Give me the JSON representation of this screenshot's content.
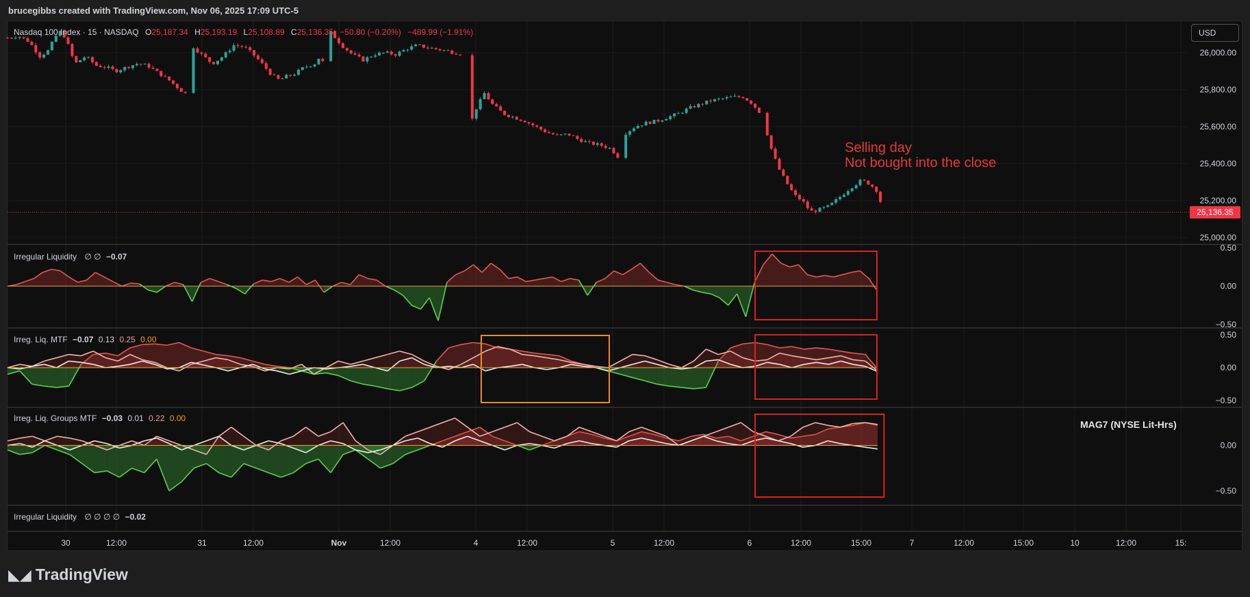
{
  "header": {
    "credit": "brucegibbs created with TradingView.com, Nov 06, 2025 17:09 UTC-5"
  },
  "symbol": {
    "name": "Nasdaq 100 Index · 15 · NASDAQ",
    "o_label": "O",
    "o": "25,187.34",
    "h_label": "H",
    "h": "25,193.19",
    "l_label": "L",
    "l": "25,108.89",
    "c_label": "C",
    "c": "25,136.35",
    "change": "−50.80 (−0.20%)",
    "change2": "−489.99 (−1.91%)"
  },
  "currency_button": "USD",
  "annotation": {
    "line1": "Selling day",
    "line2": "Not bought into the close"
  },
  "mag_label": "MAG7 (NYSE Lit-Hrs)",
  "brand": {
    "name": "TradingView",
    "logo_icon": "tradingview-logo-icon"
  },
  "colors": {
    "up": "#26a69a",
    "down": "#f23645",
    "box_red": "#e0201c",
    "box_orange": "#f08a24",
    "zero_line": "#f0a030"
  },
  "chart_data": [
    {
      "type": "candlestick",
      "name": "price",
      "y_ticks": [
        "26,000.00",
        "25,800.00",
        "25,600.00",
        "25,400.00",
        "25,200.00",
        "25,000.00"
      ],
      "ylim": [
        24970,
        26170
      ],
      "last_price_label": "25,136.35",
      "last_price": 25136.35,
      "close_path": [
        [
          0,
          26080
        ],
        [
          8,
          26090
        ],
        [
          16,
          26060
        ],
        [
          24,
          25980
        ],
        [
          30,
          26010
        ],
        [
          36,
          26090
        ],
        [
          40,
          26120
        ],
        [
          44,
          26060
        ],
        [
          50,
          25940
        ],
        [
          58,
          25980
        ],
        [
          66,
          25930
        ],
        [
          74,
          25920
        ],
        [
          80,
          25900
        ],
        [
          88,
          25920
        ],
        [
          96,
          25940
        ],
        [
          104,
          25930
        ],
        [
          112,
          25890
        ],
        [
          120,
          25850
        ],
        [
          128,
          25800
        ],
        [
          134,
          25770
        ],
        [
          138,
          26030
        ],
        [
          144,
          25990
        ],
        [
          152,
          25940
        ],
        [
          160,
          25980
        ],
        [
          168,
          26040
        ],
        [
          176,
          26030
        ],
        [
          184,
          25980
        ],
        [
          190,
          25930
        ],
        [
          196,
          25880
        ],
        [
          202,
          25850
        ],
        [
          206,
          25870
        ],
        [
          212,
          25880
        ],
        [
          220,
          25920
        ],
        [
          228,
          25940
        ],
        [
          232,
          25980
        ],
        [
          236,
          25920
        ],
        [
          240,
          26110
        ],
        [
          248,
          26040
        ],
        [
          256,
          25990
        ],
        [
          264,
          25960
        ],
        [
          272,
          25990
        ],
        [
          280,
          26000
        ],
        [
          288,
          25990
        ],
        [
          296,
          26020
        ],
        [
          304,
          26040
        ],
        [
          310,
          26030
        ],
        [
          318,
          26020
        ],
        [
          326,
          26010
        ],
        [
          332,
          26000
        ],
        [
          338,
          25990
        ],
        [
          344,
          25620
        ],
        [
          348,
          25700
        ],
        [
          354,
          25780
        ],
        [
          360,
          25720
        ],
        [
          368,
          25670
        ],
        [
          376,
          25650
        ],
        [
          384,
          25630
        ],
        [
          392,
          25600
        ],
        [
          400,
          25570
        ],
        [
          408,
          25550
        ],
        [
          416,
          25560
        ],
        [
          424,
          25530
        ],
        [
          432,
          25510
        ],
        [
          440,
          25500
        ],
        [
          448,
          25480
        ],
        [
          454,
          25430
        ],
        [
          458,
          25560
        ],
        [
          466,
          25600
        ],
        [
          474,
          25620
        ],
        [
          482,
          25630
        ],
        [
          490,
          25650
        ],
        [
          498,
          25670
        ],
        [
          506,
          25700
        ],
        [
          514,
          25720
        ],
        [
          522,
          25740
        ],
        [
          530,
          25750
        ],
        [
          538,
          25760
        ],
        [
          546,
          25760
        ],
        [
          552,
          25730
        ],
        [
          558,
          25680
        ],
        [
          562,
          25620
        ],
        [
          566,
          25500
        ],
        [
          572,
          25380
        ],
        [
          578,
          25300
        ],
        [
          584,
          25230
        ],
        [
          590,
          25200
        ],
        [
          596,
          25140
        ],
        [
          602,
          25150
        ],
        [
          610,
          25170
        ],
        [
          618,
          25220
        ],
        [
          626,
          25270
        ],
        [
          634,
          25310
        ],
        [
          640,
          25290
        ],
        [
          646,
          25250
        ],
        [
          650,
          25140
        ]
      ],
      "candle_step": 3
    },
    {
      "type": "area-line",
      "name": "Irregular Liquidity",
      "legend": "Irregular Liquidity  ∅  ∅  −0.07",
      "legend_name": "Irregular Liquidity",
      "legend_vals": "∅  ∅",
      "legend_last": "−0.07",
      "y_ticks": [
        "0.50",
        "0.00",
        "−0.50"
      ],
      "ylim": [
        -0.5,
        0.5
      ],
      "values": [
        0.0,
        0.02,
        0.06,
        0.1,
        0.18,
        0.22,
        0.2,
        0.12,
        0.05,
        0.08,
        0.18,
        0.12,
        0.06,
        0.0,
        0.04,
        0.03,
        -0.05,
        -0.08,
        0.0,
        0.05,
        0.02,
        -0.2,
        0.05,
        0.1,
        0.06,
        0.02,
        -0.03,
        -0.1,
        0.03,
        0.08,
        0.06,
        0.1,
        0.05,
        0.12,
        0.02,
        0.08,
        -0.08,
        0.0,
        0.05,
        0.02,
        0.15,
        0.1,
        0.08,
        0.0,
        -0.05,
        -0.12,
        -0.25,
        -0.3,
        -0.15,
        -0.45,
        0.05,
        0.15,
        0.2,
        0.28,
        0.18,
        0.3,
        0.22,
        0.1,
        0.12,
        0.06,
        0.08,
        0.1,
        0.12,
        0.06,
        0.1,
        0.08,
        -0.12,
        0.05,
        0.1,
        0.2,
        0.15,
        0.22,
        0.3,
        0.18,
        0.08,
        0.05,
        0.02,
        0.0,
        -0.05,
        -0.08,
        -0.1,
        -0.15,
        -0.25,
        -0.1,
        -0.4,
        0.05,
        0.28,
        0.42,
        0.3,
        0.25,
        0.28,
        0.15,
        0.12,
        0.14,
        0.12,
        0.15,
        0.18,
        0.2,
        0.1,
        -0.07
      ],
      "box": {
        "from": 0.577,
        "to": 0.663,
        "color": "red"
      }
    },
    {
      "type": "multi-line",
      "name": "Irreg. Liq. MTF",
      "legend_name": "Irreg. Liq. MTF",
      "legend_values": [
        "−0.07",
        "0.13",
        "0.25",
        "0.00"
      ],
      "y_ticks": [
        "0.50",
        "0.00",
        "−0.50"
      ],
      "ylim": [
        -0.55,
        0.55
      ],
      "series": [
        {
          "values": [
            -0.1,
            -0.05,
            -0.25,
            -0.28,
            -0.3,
            -0.28,
            0.05,
            0.2,
            0.22,
            0.18,
            0.3,
            0.35,
            0.36,
            0.34,
            0.38,
            0.3,
            0.25,
            0.2,
            0.18,
            0.15,
            0.1,
            0.05,
            0.02,
            0.0,
            -0.05,
            -0.1,
            -0.08,
            -0.12,
            -0.2,
            -0.25,
            -0.28,
            -0.32,
            -0.35,
            -0.3,
            -0.2,
            0.1,
            0.3,
            0.35,
            0.38,
            0.36,
            0.3,
            0.28,
            0.25,
            0.22,
            0.2,
            0.18,
            0.1,
            0.05,
            0.0,
            -0.05,
            -0.1,
            -0.15,
            -0.2,
            -0.25,
            -0.28,
            -0.3,
            -0.32,
            -0.3,
            0.1,
            0.3,
            0.36,
            0.38,
            0.35,
            0.3,
            0.32,
            0.28,
            0.3,
            0.28,
            0.25,
            0.22,
            0.2,
            -0.02
          ]
        },
        {
          "values": [
            0.0,
            0.05,
            0.02,
            0.1,
            0.15,
            0.2,
            0.18,
            0.25,
            0.15,
            0.1,
            0.2,
            0.12,
            0.08,
            0.0,
            -0.05,
            0.05,
            0.1,
            0.15,
            0.12,
            0.05,
            0.02,
            -0.05,
            0.0,
            -0.02,
            0.05,
            -0.1,
            0.0,
            0.1,
            0.05,
            0.1,
            0.15,
            0.2,
            0.25,
            0.2,
            0.1,
            0.02,
            -0.03,
            0.05,
            0.15,
            0.25,
            0.32,
            0.28,
            0.2,
            0.18,
            0.15,
            0.12,
            0.08,
            0.05,
            0.02,
            0.0,
            0.1,
            0.2,
            0.18,
            0.12,
            0.05,
            0.0,
            0.1,
            0.28,
            0.2,
            0.25,
            0.15,
            0.1,
            0.12,
            0.22,
            0.18,
            0.15,
            0.12,
            0.15,
            0.18,
            0.12,
            0.1,
            -0.05
          ]
        },
        {
          "values": [
            0.0,
            -0.02,
            0.02,
            0.05,
            0.0,
            0.1,
            0.08,
            0.05,
            0.0,
            0.02,
            0.05,
            0.1,
            0.05,
            -0.02,
            0.0,
            0.08,
            0.04,
            0.0,
            -0.05,
            0.0,
            0.05,
            -0.02,
            -0.05,
            -0.1,
            -0.05,
            0.0,
            -0.02,
            0.0,
            0.02,
            0.05,
            0.0,
            -0.05,
            0.1,
            0.15,
            0.05,
            0.0,
            0.02,
            0.0,
            0.05,
            -0.05,
            0.0,
            0.02,
            0.05,
            0.0,
            -0.03,
            0.0,
            0.05,
            0.02,
            0.0,
            -0.05,
            0.0,
            0.05,
            0.1,
            0.05,
            0.0,
            -0.02,
            0.0,
            0.1,
            0.12,
            0.05,
            0.0,
            0.02,
            0.08,
            0.05,
            0.0,
            0.05,
            0.08,
            0.05,
            0.1,
            0.05,
            0.02,
            -0.06
          ]
        }
      ],
      "boxes": [
        {
          "from": 0.37,
          "to": 0.47,
          "color": "orange"
        },
        {
          "from": 0.577,
          "to": 0.663,
          "color": "red"
        }
      ]
    },
    {
      "type": "multi-line",
      "name": "Irreg. Liq. Groups MTF",
      "legend_name": "Irreg. Liq. Groups MTF",
      "legend_values": [
        "−0.03",
        "0.01",
        "0.22",
        "0.00"
      ],
      "y_ticks": [
        "0.00",
        "−0.50"
      ],
      "ylim": [
        -0.62,
        0.38
      ],
      "series": [
        {
          "values": [
            -0.05,
            -0.1,
            -0.08,
            0.0,
            -0.05,
            -0.1,
            -0.2,
            -0.3,
            -0.28,
            -0.35,
            -0.25,
            -0.3,
            -0.15,
            -0.5,
            -0.4,
            -0.25,
            -0.2,
            -0.3,
            -0.35,
            -0.2,
            -0.25,
            -0.3,
            -0.35,
            -0.3,
            -0.2,
            -0.15,
            -0.3,
            -0.1,
            -0.05,
            -0.15,
            -0.25,
            -0.2,
            -0.1,
            -0.05,
            0.0,
            0.05,
            0.1,
            0.15,
            0.2,
            0.1,
            0.05,
            0.0,
            -0.05,
            0.0,
            0.05,
            0.1,
            0.15,
            0.12,
            0.08,
            0.05,
            0.1,
            0.15,
            0.12,
            0.08,
            0.05,
            0.1,
            0.12,
            0.08,
            0.1,
            0.05,
            0.1,
            0.15,
            0.12,
            0.08,
            0.1,
            0.12,
            0.18,
            0.2,
            0.22,
            0.25,
            0.22
          ]
        },
        {
          "values": [
            0.05,
            0.08,
            0.1,
            0.05,
            0.1,
            0.08,
            0.05,
            0.0,
            -0.05,
            0.0,
            0.05,
            0.0,
            0.1,
            0.05,
            0.0,
            -0.05,
            -0.1,
            0.1,
            0.2,
            0.1,
            0.0,
            -0.05,
            0.05,
            0.1,
            0.2,
            0.1,
            0.15,
            0.25,
            0.05,
            -0.05,
            -0.1,
            0.0,
            0.1,
            0.15,
            0.2,
            0.25,
            0.3,
            0.2,
            0.1,
            0.15,
            0.2,
            0.25,
            0.15,
            0.1,
            0.05,
            0.1,
            0.2,
            0.15,
            0.1,
            0.05,
            0.15,
            0.2,
            0.15,
            0.1,
            0.0,
            0.05,
            0.1,
            0.15,
            0.2,
            0.25,
            0.15,
            0.1,
            0.05,
            0.1,
            0.2,
            0.25,
            0.22,
            0.2,
            0.24,
            0.25,
            0.23
          ]
        },
        {
          "values": [
            0.0,
            0.02,
            -0.02,
            0.05,
            0.0,
            -0.05,
            0.0,
            0.05,
            0.02,
            -0.03,
            0.0,
            0.05,
            0.08,
            0.02,
            -0.05,
            0.0,
            0.05,
            0.1,
            0.0,
            -0.05,
            0.0,
            0.05,
            0.02,
            -0.03,
            -0.08,
            0.0,
            0.05,
            0.02,
            -0.05,
            -0.08,
            -0.05,
            0.0,
            0.05,
            0.08,
            0.02,
            -0.02,
            0.05,
            0.1,
            0.05,
            0.0,
            -0.05,
            0.0,
            0.02,
            0.0,
            -0.03,
            0.02,
            0.05,
            0.02,
            0.0,
            -0.02,
            0.05,
            0.08,
            0.05,
            0.02,
            0.0,
            0.05,
            0.1,
            0.05,
            0.02,
            0.0,
            0.05,
            0.08,
            0.05,
            0.02,
            -0.02,
            0.0,
            0.05,
            0.02,
            0.0,
            -0.02,
            -0.04
          ]
        }
      ],
      "box": {
        "from": 0.577,
        "to": 0.668,
        "color": "red"
      }
    },
    {
      "type": "empty",
      "name": "Irregular Liquidity (2)",
      "legend_name": "Irregular Liquidity",
      "legend_vals": "∅  ∅  ∅  ∅",
      "legend_last": "−0.02"
    }
  ],
  "x_axis": {
    "labels": [
      "30",
      "12:00",
      "31",
      "12:00",
      "Nov",
      "12:00",
      "4",
      "12:00",
      "5",
      "12:00",
      "6",
      "12:00",
      "15:00",
      "7",
      "12:00",
      "15:00",
      "10",
      "12:00",
      "15:"
    ],
    "bold": [
      "Nov"
    ]
  }
}
